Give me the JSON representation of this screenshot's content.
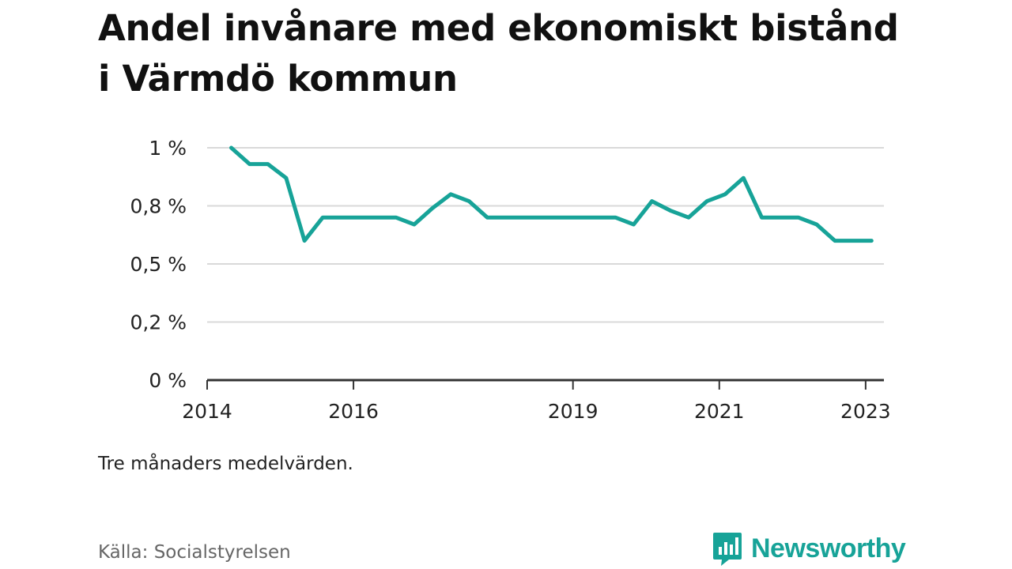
{
  "header": {
    "title": "Andel invånare med ekonomiskt bistånd i Värmdö kommun"
  },
  "chart_data": {
    "type": "line",
    "title": "Andel invånare med ekonomiskt bistånd i Värmdö kommun",
    "xlabel": "",
    "ylabel": "",
    "y_ticks": [
      0,
      0.25,
      0.5,
      0.75,
      1.0
    ],
    "y_tick_labels": [
      "0 %",
      "0,2 %",
      "0,5 %",
      "0,8 %",
      "1 %"
    ],
    "ylim": [
      0,
      1.0
    ],
    "x_range": [
      2014.0,
      2023.25
    ],
    "x_ticks": [
      2014,
      2016,
      2019,
      2021,
      2023
    ],
    "x_tick_labels": [
      "2014",
      "2016",
      "2019",
      "2021",
      "2023"
    ],
    "grid": true,
    "line_color": "#17a398",
    "series": [
      {
        "x": [
          2014.33,
          2014.58,
          2014.83,
          2015.08,
          2015.33,
          2015.58,
          2015.83,
          2016.08,
          2016.33,
          2016.58,
          2016.83,
          2017.08,
          2017.33,
          2017.58,
          2017.83,
          2018.08,
          2018.33,
          2018.58,
          2018.83,
          2019.08,
          2019.33,
          2019.58,
          2019.83,
          2020.08,
          2020.33,
          2020.58,
          2020.83,
          2021.08,
          2021.33,
          2021.58,
          2021.83,
          2022.08,
          2022.33,
          2022.58,
          2022.83,
          2023.08
        ],
        "values": [
          1.0,
          0.93,
          0.93,
          0.87,
          0.6,
          0.7,
          0.7,
          0.7,
          0.7,
          0.7,
          0.67,
          0.74,
          0.8,
          0.77,
          0.7,
          0.7,
          0.7,
          0.7,
          0.7,
          0.7,
          0.7,
          0.7,
          0.67,
          0.77,
          0.73,
          0.7,
          0.77,
          0.8,
          0.87,
          0.7,
          0.7,
          0.7,
          0.67,
          0.6,
          0.6,
          0.6
        ]
      }
    ]
  },
  "footer": {
    "note": "Tre månaders medelvärden.",
    "source": "Källa: Socialstyrelsen",
    "logo_text": "Newsworthy",
    "logo_color": "#17a398"
  }
}
